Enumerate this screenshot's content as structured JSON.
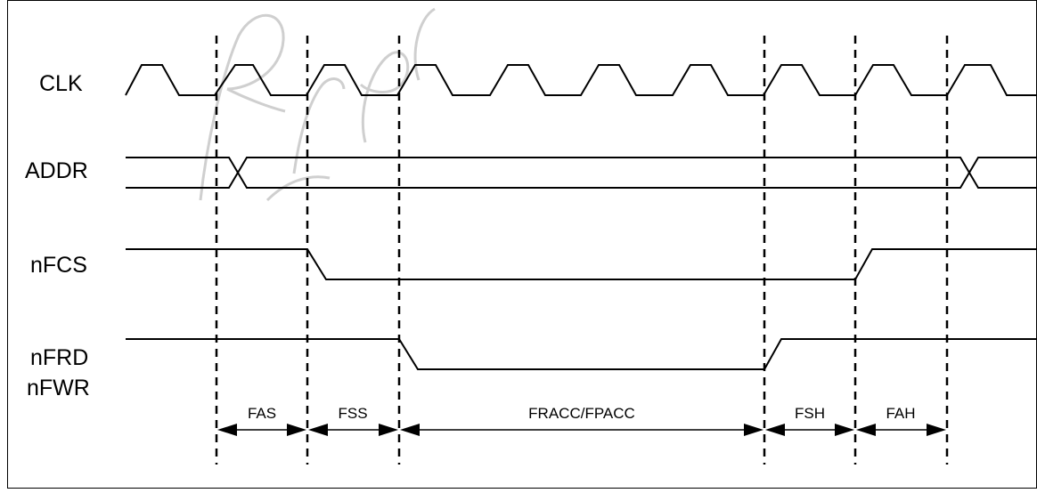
{
  "signals": [
    {
      "id": "clk",
      "label": "CLK"
    },
    {
      "id": "addr",
      "label": "ADDR"
    },
    {
      "id": "nfcs",
      "label": "nFCS"
    },
    {
      "id": "nfrd",
      "label": "nFRD"
    },
    {
      "id": "nfwr",
      "label": "nFWR"
    }
  ],
  "intervals": [
    {
      "id": "fas",
      "label": "FAS"
    },
    {
      "id": "fss",
      "label": "FSS"
    },
    {
      "id": "fracc",
      "label": "FRACC/FPACC"
    },
    {
      "id": "fsh",
      "label": "FSH"
    },
    {
      "id": "fah",
      "label": "FAH"
    }
  ],
  "colors": {
    "line": "#000000",
    "watermark": "#cfcfcf",
    "background": "#ffffff"
  }
}
